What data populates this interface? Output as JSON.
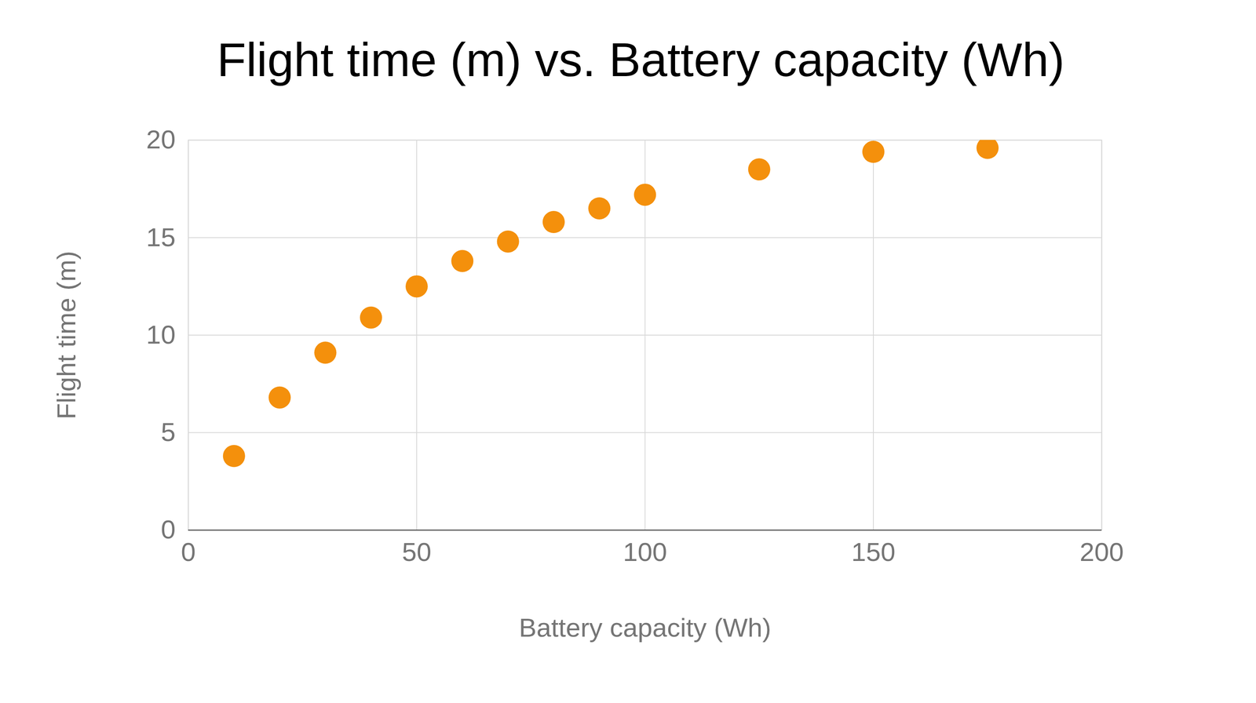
{
  "chart_data": {
    "type": "scatter",
    "title": "Flight time (m) vs. Battery capacity (Wh)",
    "x_label": "Battery capacity (Wh)",
    "y_label": "Flight time (m)",
    "x": [
      10,
      20,
      30,
      40,
      50,
      60,
      70,
      80,
      90,
      100,
      125,
      150,
      175
    ],
    "values": [
      3.8,
      6.8,
      9.1,
      10.9,
      12.5,
      13.8,
      14.8,
      15.8,
      16.5,
      17.2,
      18.5,
      19.4,
      19.6
    ],
    "color": "#f4900c",
    "marker": "circle",
    "xlim": [
      0,
      200
    ],
    "xticks": [
      0,
      50,
      100,
      150,
      200
    ],
    "ylim": [
      0,
      20
    ],
    "yticks": [
      0,
      5,
      10,
      15,
      20
    ],
    "grid": true
  }
}
